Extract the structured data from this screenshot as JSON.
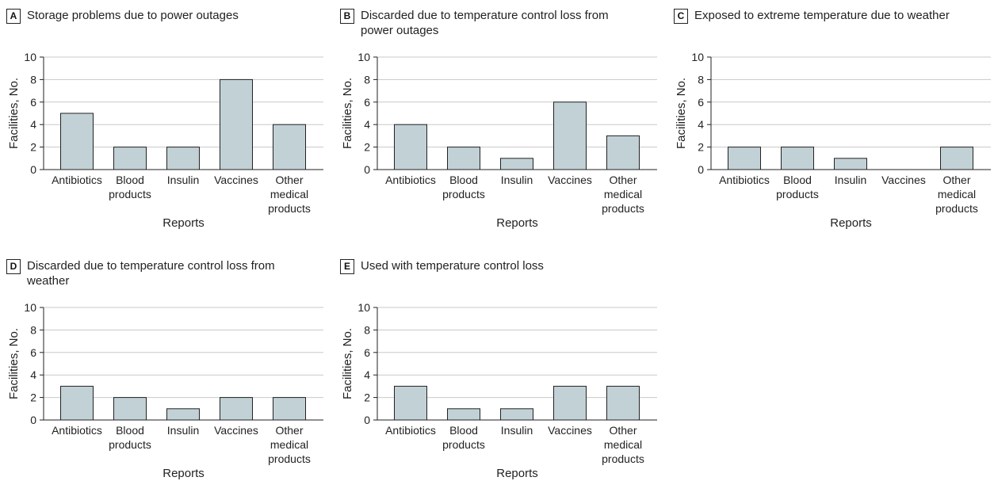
{
  "chart_data": [
    {
      "type": "bar",
      "panel_letter": "A",
      "title": "Storage problems due to power outages",
      "xlabel": "Reports",
      "ylabel": "Facilities, No.",
      "ylim": [
        0,
        10
      ],
      "yticks": [
        0,
        2,
        4,
        6,
        8,
        10
      ],
      "categories": [
        "Antibiotics",
        "Blood products",
        "Insulin",
        "Vaccines",
        "Other medical products"
      ],
      "category_lines": [
        [
          "Antibiotics"
        ],
        [
          "Blood",
          "products"
        ],
        [
          "Insulin"
        ],
        [
          "Vaccines"
        ],
        [
          "Other",
          "medical",
          "products"
        ]
      ],
      "values": [
        5,
        2,
        2,
        8,
        4
      ],
      "grid": true,
      "bar_color": "#c2d1d6"
    },
    {
      "type": "bar",
      "panel_letter": "B",
      "title": "Discarded due to temperature control loss from power outages",
      "xlabel": "Reports",
      "ylabel": "Facilities, No.",
      "ylim": [
        0,
        10
      ],
      "yticks": [
        0,
        2,
        4,
        6,
        8,
        10
      ],
      "categories": [
        "Antibiotics",
        "Blood products",
        "Insulin",
        "Vaccines",
        "Other medical products"
      ],
      "category_lines": [
        [
          "Antibiotics"
        ],
        [
          "Blood",
          "products"
        ],
        [
          "Insulin"
        ],
        [
          "Vaccines"
        ],
        [
          "Other",
          "medical",
          "products"
        ]
      ],
      "values": [
        4,
        2,
        1,
        6,
        3
      ],
      "grid": true,
      "bar_color": "#c2d1d6"
    },
    {
      "type": "bar",
      "panel_letter": "C",
      "title": "Exposed to extreme temperature due to weather",
      "xlabel": "Reports",
      "ylabel": "Facilities, No.",
      "ylim": [
        0,
        10
      ],
      "yticks": [
        0,
        2,
        4,
        6,
        8,
        10
      ],
      "categories": [
        "Antibiotics",
        "Blood products",
        "Insulin",
        "Vaccines",
        "Other medical products"
      ],
      "category_lines": [
        [
          "Antibiotics"
        ],
        [
          "Blood",
          "products"
        ],
        [
          "Insulin"
        ],
        [
          "Vaccines"
        ],
        [
          "Other",
          "medical",
          "products"
        ]
      ],
      "values": [
        2,
        2,
        1,
        0,
        2
      ],
      "grid": true,
      "bar_color": "#c2d1d6"
    },
    {
      "type": "bar",
      "panel_letter": "D",
      "title": "Discarded due to temperature control loss from weather",
      "xlabel": "Reports",
      "ylabel": "Facilities, No.",
      "ylim": [
        0,
        10
      ],
      "yticks": [
        0,
        2,
        4,
        6,
        8,
        10
      ],
      "categories": [
        "Antibiotics",
        "Blood products",
        "Insulin",
        "Vaccines",
        "Other medical products"
      ],
      "category_lines": [
        [
          "Antibiotics"
        ],
        [
          "Blood",
          "products"
        ],
        [
          "Insulin"
        ],
        [
          "Vaccines"
        ],
        [
          "Other",
          "medical",
          "products"
        ]
      ],
      "values": [
        3,
        2,
        1,
        2,
        2
      ],
      "grid": true,
      "bar_color": "#c2d1d6"
    },
    {
      "type": "bar",
      "panel_letter": "E",
      "title": "Used with temperature control loss",
      "xlabel": "Reports",
      "ylabel": "Facilities, No.",
      "ylim": [
        0,
        10
      ],
      "yticks": [
        0,
        2,
        4,
        6,
        8,
        10
      ],
      "categories": [
        "Antibiotics",
        "Blood products",
        "Insulin",
        "Vaccines",
        "Other medical products"
      ],
      "category_lines": [
        [
          "Antibiotics"
        ],
        [
          "Blood",
          "products"
        ],
        [
          "Insulin"
        ],
        [
          "Vaccines"
        ],
        [
          "Other",
          "medical",
          "products"
        ]
      ],
      "values": [
        3,
        1,
        1,
        3,
        3
      ],
      "grid": true,
      "bar_color": "#c2d1d6"
    }
  ]
}
